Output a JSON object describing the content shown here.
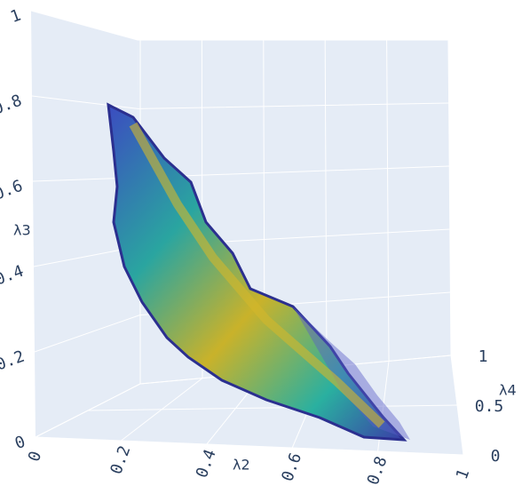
{
  "chart_data": {
    "type": "surface3d",
    "x_title": "λ2",
    "y_title": "λ4",
    "z_title": "λ3",
    "xlim": [
      0,
      1
    ],
    "xticks": [
      0,
      0.2,
      0.4,
      0.6,
      0.8,
      1
    ],
    "ylim": [
      0,
      1
    ],
    "yticks": [
      0,
      0.5,
      1
    ],
    "zlim": [
      0,
      1
    ],
    "zticks": [
      0,
      0.2,
      0.4,
      0.6,
      0.8,
      1
    ],
    "grid": true
  }
}
